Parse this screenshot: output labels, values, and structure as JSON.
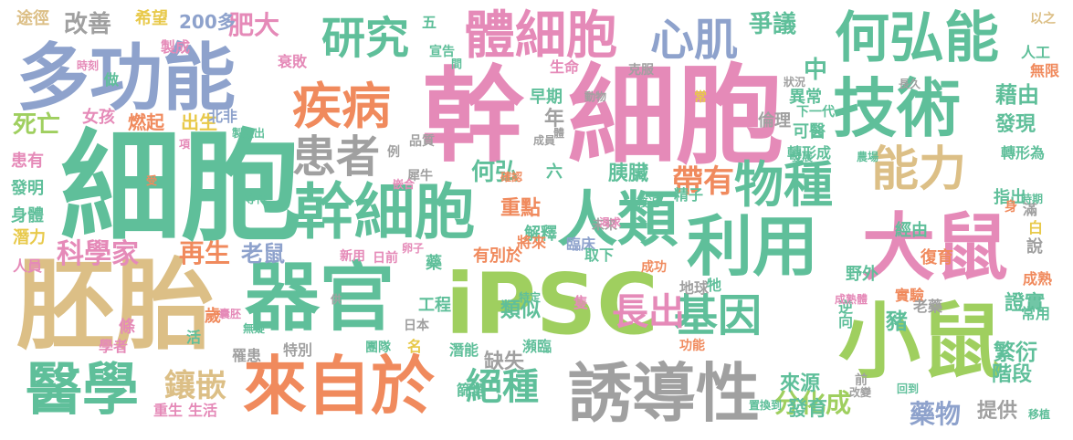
{
  "palette": {
    "green": "#5fbf9a",
    "pink": "#e58ab8",
    "orange": "#f08a5d",
    "tan": "#dcbf86",
    "blue": "#8ea2cc",
    "lime": "#9fcf5f",
    "gray": "#a0a0a0",
    "yellow": "#e8c94a"
  },
  "words": [
    {
      "t": "iPSC",
      "c": "lime"
    },
    {
      "t": "細胞",
      "c": "pink"
    },
    {
      "t": "細胞",
      "c": "green"
    },
    {
      "t": "幹",
      "c": "pink"
    },
    {
      "t": "胚胎",
      "c": "tan"
    },
    {
      "t": "多功能",
      "c": "blue"
    },
    {
      "t": "技術",
      "c": "green"
    },
    {
      "t": "器官",
      "c": "green"
    },
    {
      "t": "小鼠",
      "c": "lime"
    },
    {
      "t": "利用",
      "c": "green"
    },
    {
      "t": "大鼠",
      "c": "pink"
    },
    {
      "t": "幹細胞",
      "c": "green"
    },
    {
      "t": "人類",
      "c": "green"
    },
    {
      "t": "來自於",
      "c": "orange"
    },
    {
      "t": "誘導性",
      "c": "gray"
    },
    {
      "t": "體細胞",
      "c": "pink"
    },
    {
      "t": "何弘能",
      "c": "green"
    },
    {
      "t": "醫學",
      "c": "green"
    },
    {
      "t": "疾病",
      "c": "orange"
    },
    {
      "t": "患者",
      "c": "gray"
    },
    {
      "t": "物種",
      "c": "green"
    },
    {
      "t": "能力",
      "c": "tan"
    },
    {
      "t": "心肌",
      "c": "blue"
    },
    {
      "t": "研究",
      "c": "green"
    },
    {
      "t": "基因",
      "c": "green"
    },
    {
      "t": "長出",
      "c": "pink"
    },
    {
      "t": "絕種",
      "c": "green"
    },
    {
      "t": "鑲嵌",
      "c": "tan"
    },
    {
      "t": "帶有",
      "c": "orange"
    },
    {
      "t": "科學家",
      "c": "pink"
    },
    {
      "t": "再生",
      "c": "orange"
    },
    {
      "t": "老鼠",
      "c": "blue"
    },
    {
      "t": "肥大",
      "c": "pink"
    },
    {
      "t": "改善",
      "c": "gray"
    },
    {
      "t": "死亡",
      "c": "lime"
    },
    {
      "t": "爭議",
      "c": "green"
    },
    {
      "t": "分化成",
      "c": "lime"
    },
    {
      "t": "藥物",
      "c": "blue"
    },
    {
      "t": "提供",
      "c": "gray"
    },
    {
      "t": "繁衍",
      "c": "green"
    },
    {
      "t": "證實",
      "c": "green"
    },
    {
      "t": "藉由",
      "c": "green"
    },
    {
      "t": "發現",
      "c": "green"
    },
    {
      "t": "缺失",
      "c": "gray"
    },
    {
      "t": "類似",
      "c": "green"
    },
    {
      "t": "豬",
      "c": "green"
    },
    {
      "t": "階段",
      "c": "green"
    },
    {
      "t": "來源",
      "c": "green"
    },
    {
      "t": "發育",
      "c": "green"
    },
    {
      "t": "何弘",
      "c": "green"
    },
    {
      "t": "胰臟",
      "c": "green"
    },
    {
      "t": "重點",
      "c": "orange"
    },
    {
      "t": "解釋",
      "c": "green"
    },
    {
      "t": "說",
      "c": "gray"
    },
    {
      "t": "年",
      "c": "gray"
    },
    {
      "t": "中",
      "c": "green"
    },
    {
      "t": "早期",
      "c": "green"
    },
    {
      "t": "生命",
      "c": "pink"
    },
    {
      "t": "燃起",
      "c": "orange"
    },
    {
      "t": "出生",
      "c": "yellow"
    },
    {
      "t": "女孩",
      "c": "pink"
    },
    {
      "t": "北非",
      "c": "blue"
    },
    {
      "t": "200多",
      "c": "blue"
    },
    {
      "t": "希望",
      "c": "yellow"
    },
    {
      "t": "製成",
      "c": "pink"
    },
    {
      "t": "途徑",
      "c": "tan"
    },
    {
      "t": "衰敗",
      "c": "pink"
    },
    {
      "t": "宣告",
      "c": "green"
    },
    {
      "t": "五",
      "c": "green"
    },
    {
      "t": "倫理",
      "c": "gray"
    },
    {
      "t": "異常",
      "c": "green"
    },
    {
      "t": "可醫",
      "c": "green"
    },
    {
      "t": "轉形成",
      "c": "green"
    },
    {
      "t": "轉形為",
      "c": "green"
    },
    {
      "t": "指出",
      "c": "green"
    },
    {
      "t": "滿",
      "c": "gray"
    },
    {
      "t": "無限",
      "c": "orange"
    },
    {
      "t": "人工",
      "c": "green"
    },
    {
      "t": "以之",
      "c": "tan"
    },
    {
      "t": "患有",
      "c": "pink"
    },
    {
      "t": "發明",
      "c": "green"
    },
    {
      "t": "身體",
      "c": "green"
    },
    {
      "t": "潛力",
      "c": "yellow"
    },
    {
      "t": "人員",
      "c": "pink"
    },
    {
      "t": "工程",
      "c": "green"
    },
    {
      "t": "潛能",
      "c": "green"
    },
    {
      "t": "篩選",
      "c": "green"
    },
    {
      "t": "瀕臨",
      "c": "green"
    },
    {
      "t": "臨床",
      "c": "blue"
    },
    {
      "t": "精子",
      "c": "green"
    },
    {
      "t": "經由",
      "c": "green"
    },
    {
      "t": "復育",
      "c": "orange"
    },
    {
      "t": "成熟",
      "c": "orange"
    },
    {
      "t": "常用",
      "c": "green"
    },
    {
      "t": "逆向",
      "c": "green"
    },
    {
      "t": "實驗",
      "c": "orange"
    },
    {
      "t": "老藥",
      "c": "gray"
    },
    {
      "t": "地球",
      "c": "gray"
    },
    {
      "t": "牠",
      "c": "green"
    },
    {
      "t": "隻",
      "c": "pink"
    },
    {
      "t": "取下",
      "c": "green"
    },
    {
      "t": "有別於",
      "c": "orange"
    },
    {
      "t": "日前",
      "c": "pink"
    },
    {
      "t": "新用",
      "c": "pink"
    },
    {
      "t": "藥",
      "c": "green"
    },
    {
      "t": "卵子",
      "c": "pink"
    },
    {
      "t": "將來",
      "c": "orange"
    },
    {
      "t": "未來",
      "c": "gray"
    },
    {
      "t": "六",
      "c": "green"
    },
    {
      "t": "犀牛",
      "c": "gray"
    },
    {
      "t": "品質",
      "c": "gray"
    },
    {
      "t": "例",
      "c": "gray"
    },
    {
      "t": "特別",
      "c": "gray"
    },
    {
      "t": "罹患",
      "c": "gray"
    },
    {
      "t": "生活",
      "c": "pink"
    },
    {
      "t": "重生",
      "c": "pink"
    },
    {
      "t": "歲",
      "c": "orange"
    },
    {
      "t": "條",
      "c": "pink"
    },
    {
      "t": "學者",
      "c": "pink"
    },
    {
      "t": "活",
      "c": "green"
    },
    {
      "t": "團隊",
      "c": "green"
    },
    {
      "t": "日本",
      "c": "gray"
    },
    {
      "t": "名",
      "c": "yellow"
    },
    {
      "t": "野外",
      "c": "green"
    },
    {
      "t": "白",
      "c": "yellow"
    },
    {
      "t": "身",
      "c": "orange"
    },
    {
      "t": "移植",
      "c": "green"
    },
    {
      "t": "前",
      "c": "gray"
    },
    {
      "t": "功能",
      "c": "orange"
    },
    {
      "t": "成功",
      "c": "orange"
    },
    {
      "t": "時刻",
      "c": "pink"
    },
    {
      "t": "做",
      "c": "green"
    },
    {
      "t": "製造出",
      "c": "green"
    },
    {
      "t": "項",
      "c": "pink"
    },
    {
      "t": "動物",
      "c": "gray"
    },
    {
      "t": "克服",
      "c": "gray"
    },
    {
      "t": "間",
      "c": "green"
    },
    {
      "t": "常",
      "c": "yellow"
    },
    {
      "t": "狀況",
      "c": "gray"
    },
    {
      "t": "長久",
      "c": "gray"
    },
    {
      "t": "下一代",
      "c": "green"
    },
    {
      "t": "發展",
      "c": "green"
    },
    {
      "t": "農場",
      "c": "green"
    },
    {
      "t": "接近",
      "c": "green"
    },
    {
      "t": "體",
      "c": "gray"
    },
    {
      "t": "成員",
      "c": "gray"
    },
    {
      "t": "確認",
      "c": "orange"
    },
    {
      "t": "嵌合",
      "c": "pink"
    },
    {
      "t": "受",
      "c": "orange"
    },
    {
      "t": "等待",
      "c": "green"
    },
    {
      "t": "渴求",
      "c": "pink"
    },
    {
      "t": "時期",
      "c": "green"
    },
    {
      "t": "特定",
      "c": "green"
    },
    {
      "t": "供",
      "c": "gray"
    },
    {
      "t": "囊胚",
      "c": "pink"
    },
    {
      "t": "無疑",
      "c": "green"
    },
    {
      "t": "成熟體",
      "c": "pink"
    },
    {
      "t": "改變",
      "c": "gray"
    },
    {
      "t": "回到",
      "c": "green"
    },
    {
      "t": "置換到",
      "c": "green"
    }
  ]
}
